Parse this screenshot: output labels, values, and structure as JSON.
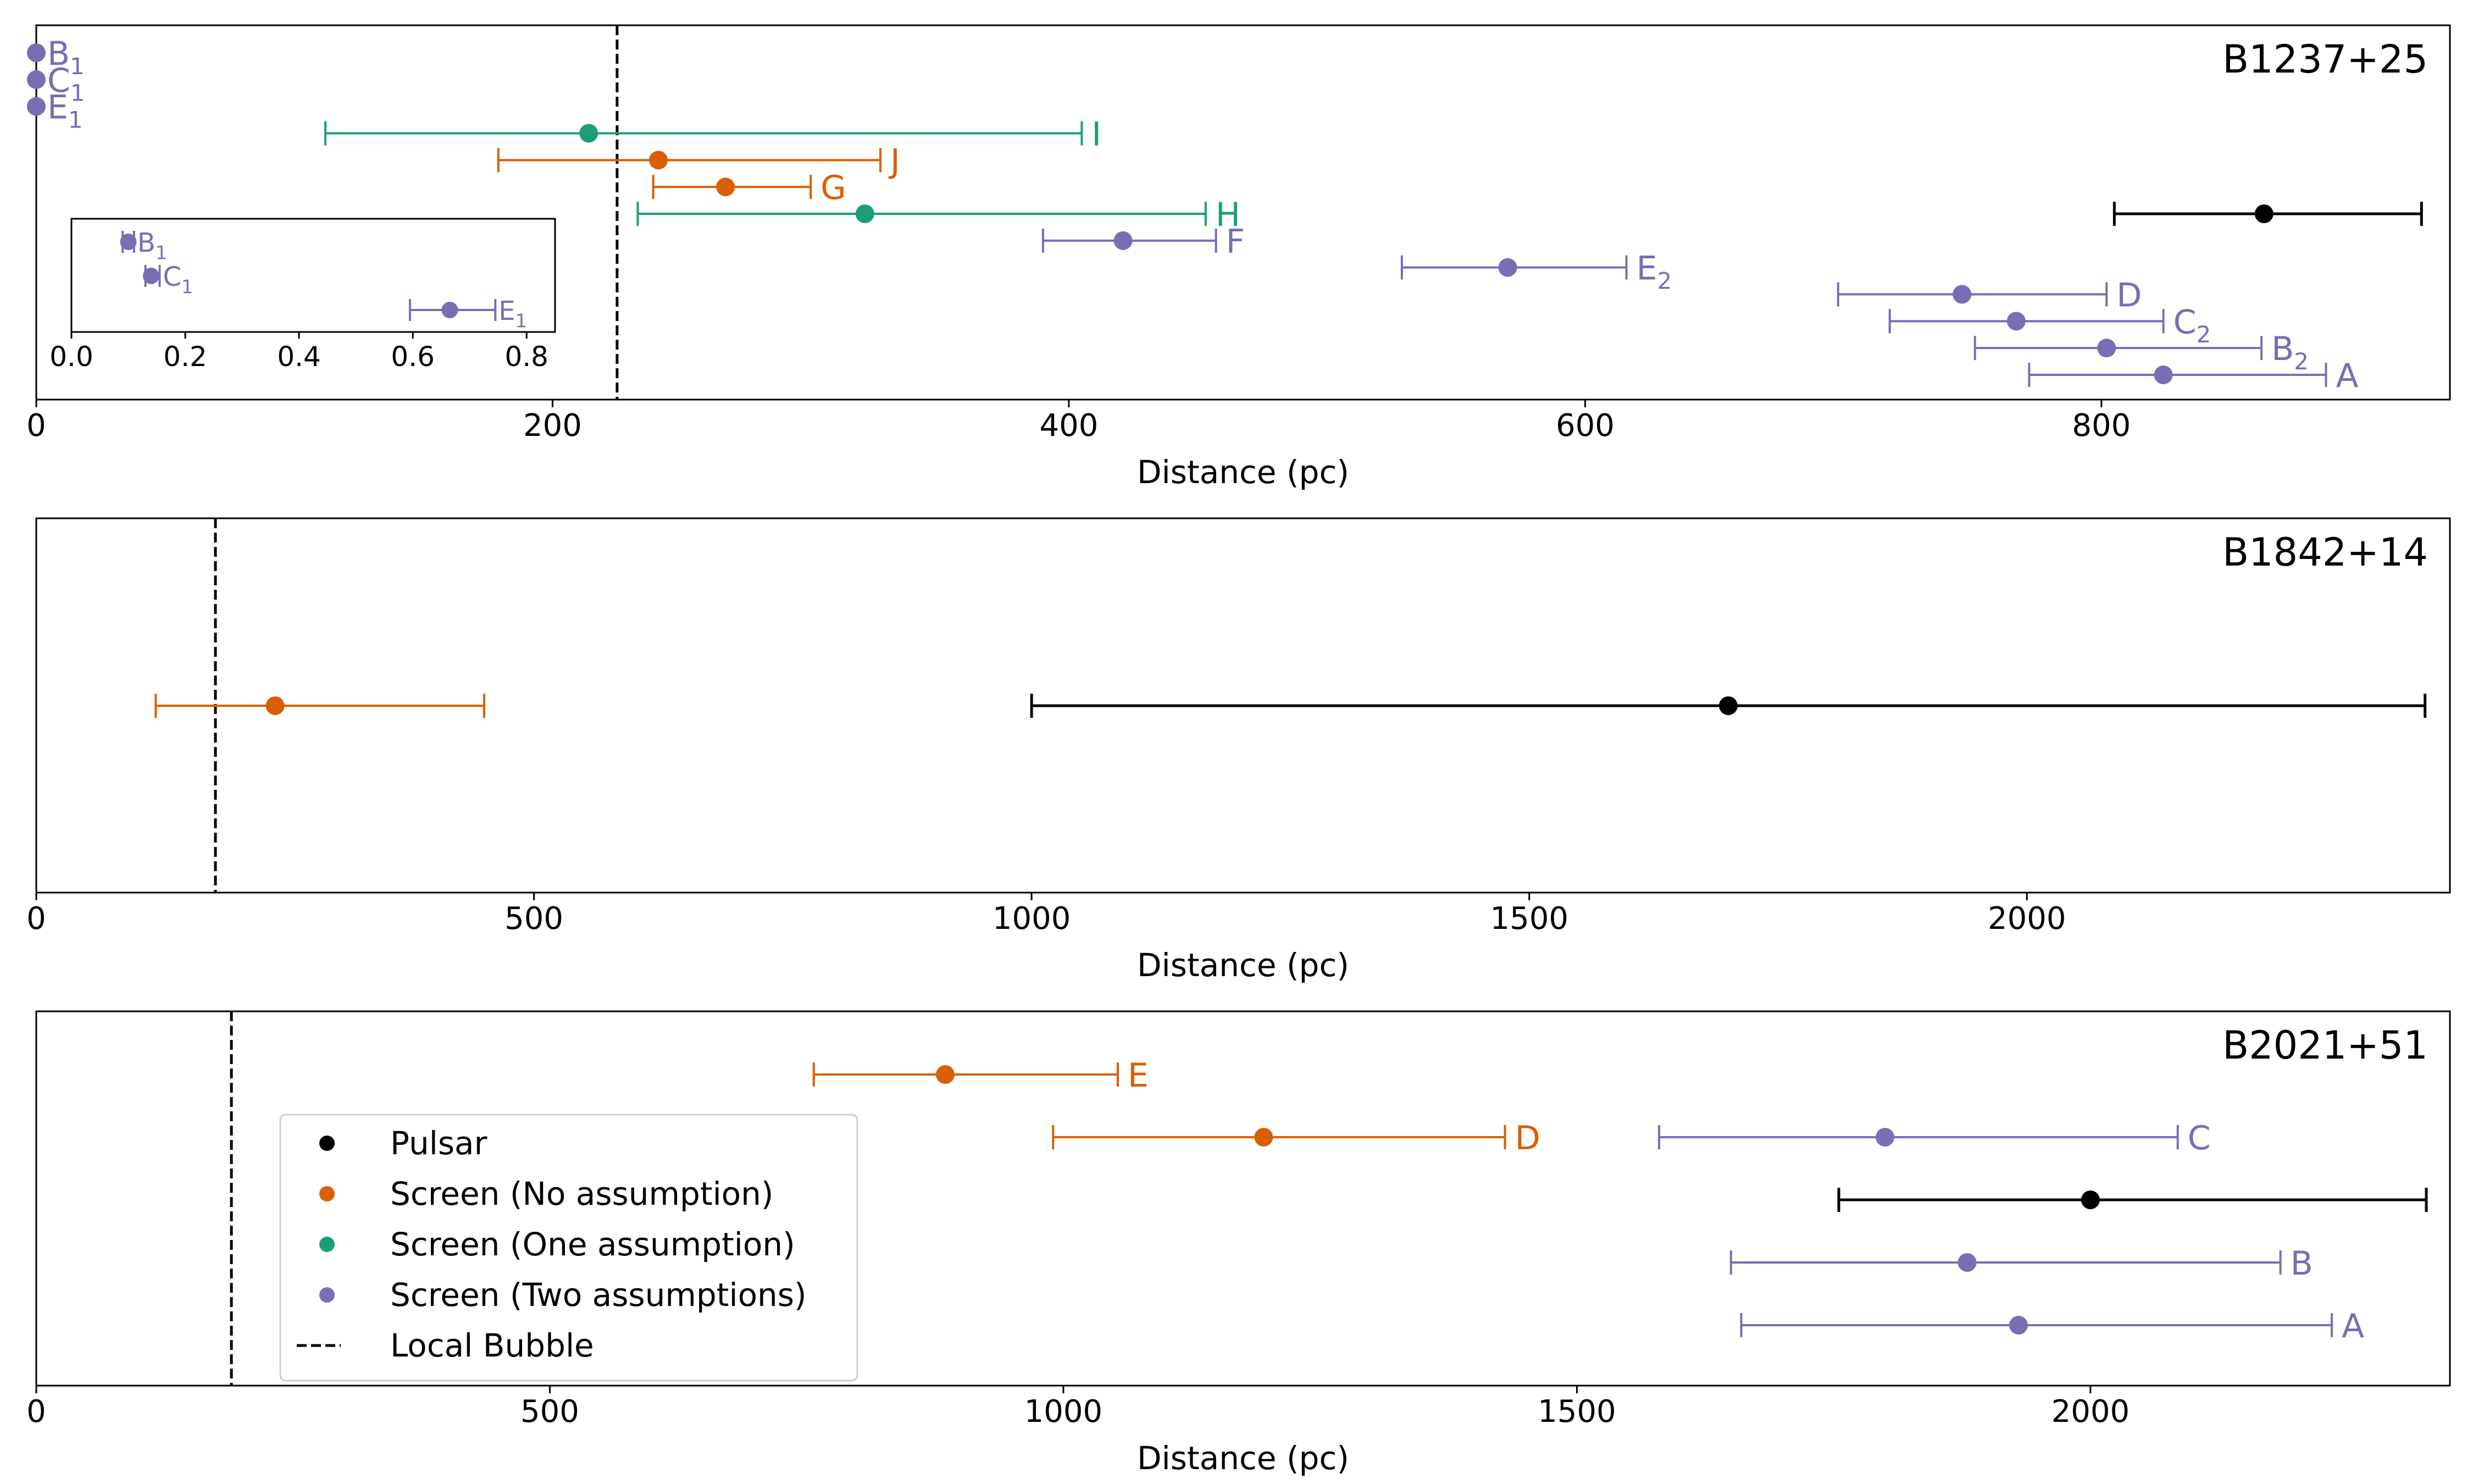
{
  "colors": {
    "pulsar": "#000000",
    "no_assumption": "#d95f02",
    "one_assumption": "#1b9e77",
    "two_assumptions": "#7570b3",
    "bubble": "#000000"
  },
  "legend": {
    "entries": [
      {
        "label": "Pulsar",
        "group": "pulsar",
        "style": "marker"
      },
      {
        "label": "Screen (No assumption)",
        "group": "no_assumption",
        "style": "marker"
      },
      {
        "label": "Screen (One assumption)",
        "group": "one_assumption",
        "style": "marker"
      },
      {
        "label": "Screen (Two assumptions)",
        "group": "two_assumptions",
        "style": "marker"
      },
      {
        "label": "Local Bubble",
        "group": "bubble",
        "style": "dashed"
      }
    ]
  },
  "chart_data": [
    {
      "type": "errorbar",
      "title": "B1237+25",
      "xlabel": "Distance (pc)",
      "xlim": [
        0,
        935
      ],
      "xticks": [
        0,
        200,
        400,
        600,
        800
      ],
      "xtick_labels": [
        "0",
        "200",
        "400",
        "600",
        "800"
      ],
      "local_bubble": 225,
      "rows": 13,
      "points": [
        {
          "label": "B",
          "sub": "1",
          "group": "two_assumptions",
          "value": 0.1,
          "lo": 0.1,
          "hi": 0.1,
          "row": 0,
          "caps": false
        },
        {
          "label": "C",
          "sub": "1",
          "group": "two_assumptions",
          "value": 0.15,
          "lo": 0.15,
          "hi": 0.15,
          "row": 1,
          "caps": false
        },
        {
          "label": "E",
          "sub": "1",
          "group": "two_assumptions",
          "value": 0.67,
          "lo": 0.67,
          "hi": 0.67,
          "row": 2,
          "caps": false
        },
        {
          "label": "I",
          "sub": "",
          "group": "one_assumption",
          "value": 214,
          "lo": 112,
          "hi": 405,
          "row": 3,
          "caps": true
        },
        {
          "label": "J",
          "sub": "",
          "group": "no_assumption",
          "value": 241,
          "lo": 179,
          "hi": 327,
          "row": 4,
          "caps": true
        },
        {
          "label": "G",
          "sub": "",
          "group": "no_assumption",
          "value": 267,
          "lo": 239,
          "hi": 300,
          "row": 5,
          "caps": true
        },
        {
          "label": "H",
          "sub": "",
          "group": "one_assumption",
          "value": 321,
          "lo": 233,
          "hi": 453,
          "row": 6,
          "caps": true
        },
        {
          "label": "",
          "sub": "",
          "group": "pulsar",
          "value": 863,
          "lo": 805,
          "hi": 924,
          "row": 6,
          "caps": true
        },
        {
          "label": "F",
          "sub": "",
          "group": "two_assumptions",
          "value": 421,
          "lo": 390,
          "hi": 457,
          "row": 7,
          "caps": true
        },
        {
          "label": "E",
          "sub": "2",
          "group": "two_assumptions",
          "value": 570,
          "lo": 529,
          "hi": 616,
          "row": 8,
          "caps": true
        },
        {
          "label": "D",
          "sub": "",
          "group": "two_assumptions",
          "value": 746,
          "lo": 698,
          "hi": 802,
          "row": 9,
          "caps": true
        },
        {
          "label": "C",
          "sub": "2",
          "group": "two_assumptions",
          "value": 767,
          "lo": 718,
          "hi": 824,
          "row": 10,
          "caps": true
        },
        {
          "label": "B",
          "sub": "2",
          "group": "two_assumptions",
          "value": 802,
          "lo": 751,
          "hi": 862,
          "row": 11,
          "caps": true
        },
        {
          "label": "A",
          "sub": "",
          "group": "two_assumptions",
          "value": 824,
          "lo": 772,
          "hi": 887,
          "row": 12,
          "caps": true
        }
      ],
      "inset": {
        "xlim": [
          0,
          0.85
        ],
        "xticks": [
          0.0,
          0.2,
          0.4,
          0.6,
          0.8
        ],
        "xtick_labels": [
          "0.0",
          "0.2",
          "0.4",
          "0.6",
          "0.8"
        ],
        "rows": 3,
        "points": [
          {
            "label": "B",
            "sub": "1",
            "group": "two_assumptions",
            "value": 0.1,
            "lo": 0.09,
            "hi": 0.11,
            "row": 0,
            "caps": true
          },
          {
            "label": "C",
            "sub": "1",
            "group": "two_assumptions",
            "value": 0.14,
            "lo": 0.13,
            "hi": 0.155,
            "row": 1,
            "caps": true
          },
          {
            "label": "E",
            "sub": "1",
            "group": "two_assumptions",
            "value": 0.665,
            "lo": 0.595,
            "hi": 0.745,
            "row": 2,
            "caps": true
          }
        ]
      }
    },
    {
      "type": "errorbar",
      "title": "B1842+14",
      "xlabel": "Distance (pc)",
      "xlim": [
        0,
        2425
      ],
      "xticks": [
        0,
        500,
        1000,
        1500,
        2000
      ],
      "xtick_labels": [
        "0",
        "500",
        "1000",
        "1500",
        "2000"
      ],
      "local_bubble": 180,
      "rows": 1,
      "points": [
        {
          "label": "",
          "sub": "",
          "group": "no_assumption",
          "value": 240,
          "lo": 120,
          "hi": 450,
          "row": 0,
          "caps": true
        },
        {
          "label": "",
          "sub": "",
          "group": "pulsar",
          "value": 1700,
          "lo": 1000,
          "hi": 2400,
          "row": 0,
          "caps": true
        }
      ]
    },
    {
      "type": "errorbar",
      "title": "B2021+51",
      "xlabel": "Distance (pc)",
      "xlim": [
        0,
        2350
      ],
      "xticks": [
        0,
        500,
        1000,
        1500,
        2000
      ],
      "xtick_labels": [
        "0",
        "500",
        "1000",
        "1500",
        "2000"
      ],
      "local_bubble": 190,
      "rows": 5,
      "points": [
        {
          "label": "E",
          "sub": "",
          "group": "no_assumption",
          "value": 885,
          "lo": 757,
          "hi": 1053,
          "row": 0,
          "caps": true
        },
        {
          "label": "D",
          "sub": "",
          "group": "no_assumption",
          "value": 1195,
          "lo": 990,
          "hi": 1430,
          "row": 1,
          "caps": true
        },
        {
          "label": "C",
          "sub": "",
          "group": "two_assumptions",
          "value": 1800,
          "lo": 1580,
          "hi": 2085,
          "row": 1,
          "caps": true
        },
        {
          "label": "",
          "sub": "",
          "group": "pulsar",
          "value": 2000,
          "lo": 1755,
          "hi": 2327,
          "row": 2,
          "caps": true
        },
        {
          "label": "B",
          "sub": "",
          "group": "two_assumptions",
          "value": 1880,
          "lo": 1650,
          "hi": 2185,
          "row": 3,
          "caps": true
        },
        {
          "label": "A",
          "sub": "",
          "group": "two_assumptions",
          "value": 1930,
          "lo": 1660,
          "hi": 2235,
          "row": 4,
          "caps": true
        }
      ]
    }
  ]
}
